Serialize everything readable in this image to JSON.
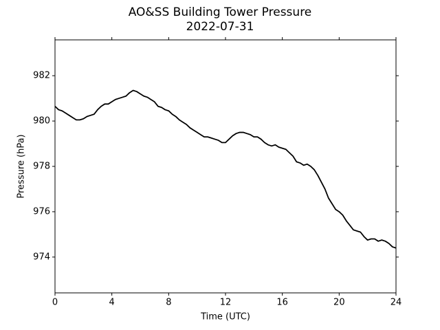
{
  "chart_data": {
    "type": "line",
    "title": "AO&SS Building Tower Pressure",
    "subtitle": "2022-07-31",
    "x_label": "Time (UTC)",
    "y_label": "Pressure (hPa)",
    "xlim": [
      0,
      24
    ],
    "xticks": [
      0,
      4,
      8,
      12,
      16,
      20,
      24
    ],
    "ylim": [
      972.42,
      983.58
    ],
    "yticks": [
      974,
      976,
      978,
      980,
      982
    ],
    "x": [
      0,
      0.25,
      0.5,
      0.75,
      1,
      1.25,
      1.5,
      1.75,
      2,
      2.25,
      2.5,
      2.75,
      3,
      3.25,
      3.5,
      3.75,
      4,
      4.25,
      4.5,
      4.75,
      5,
      5.25,
      5.5,
      5.75,
      6,
      6.25,
      6.5,
      6.75,
      7,
      7.25,
      7.5,
      7.75,
      8,
      8.25,
      8.5,
      8.75,
      9,
      9.25,
      9.5,
      9.75,
      10,
      10.25,
      10.5,
      10.75,
      11,
      11.25,
      11.5,
      11.75,
      12,
      12.25,
      12.5,
      12.75,
      13,
      13.25,
      13.5,
      13.75,
      14,
      14.25,
      14.5,
      14.75,
      15,
      15.25,
      15.5,
      15.75,
      16,
      16.25,
      16.5,
      16.75,
      17,
      17.25,
      17.5,
      17.75,
      18,
      18.25,
      18.5,
      18.75,
      19,
      19.25,
      19.5,
      19.75,
      20,
      20.25,
      20.5,
      20.75,
      21,
      21.25,
      21.5,
      21.75,
      22,
      22.25,
      22.5,
      22.75,
      23,
      23.25,
      23.5,
      23.75,
      24
    ],
    "series": [
      {
        "color": "#000000",
        "values": [
          980.65,
          980.5,
          980.45,
          980.35,
          980.25,
          980.15,
          980.05,
          980.05,
          980.1,
          980.2,
          980.25,
          980.3,
          980.5,
          980.65,
          980.75,
          980.75,
          980.85,
          980.95,
          981.0,
          981.05,
          981.1,
          981.25,
          981.35,
          981.3,
          981.2,
          981.1,
          981.05,
          980.95,
          980.85,
          980.65,
          980.6,
          980.5,
          980.45,
          980.3,
          980.2,
          980.05,
          979.95,
          979.85,
          979.7,
          979.6,
          979.5,
          979.4,
          979.3,
          979.3,
          979.25,
          979.2,
          979.15,
          979.05,
          979.05,
          979.2,
          979.35,
          979.45,
          979.5,
          979.5,
          979.45,
          979.4,
          979.3,
          979.3,
          979.2,
          979.05,
          978.95,
          978.9,
          978.95,
          978.85,
          978.8,
          978.75,
          978.6,
          978.45,
          978.2,
          978.15,
          978.05,
          978.1,
          978.0,
          977.85,
          977.6,
          977.3,
          977.0,
          976.6,
          976.35,
          976.1,
          976.0,
          975.85,
          975.6,
          975.4,
          975.2,
          975.15,
          975.1,
          974.9,
          974.75,
          974.8,
          974.8,
          974.7,
          974.75,
          974.7,
          974.6,
          974.45,
          974.4
        ]
      }
    ]
  }
}
